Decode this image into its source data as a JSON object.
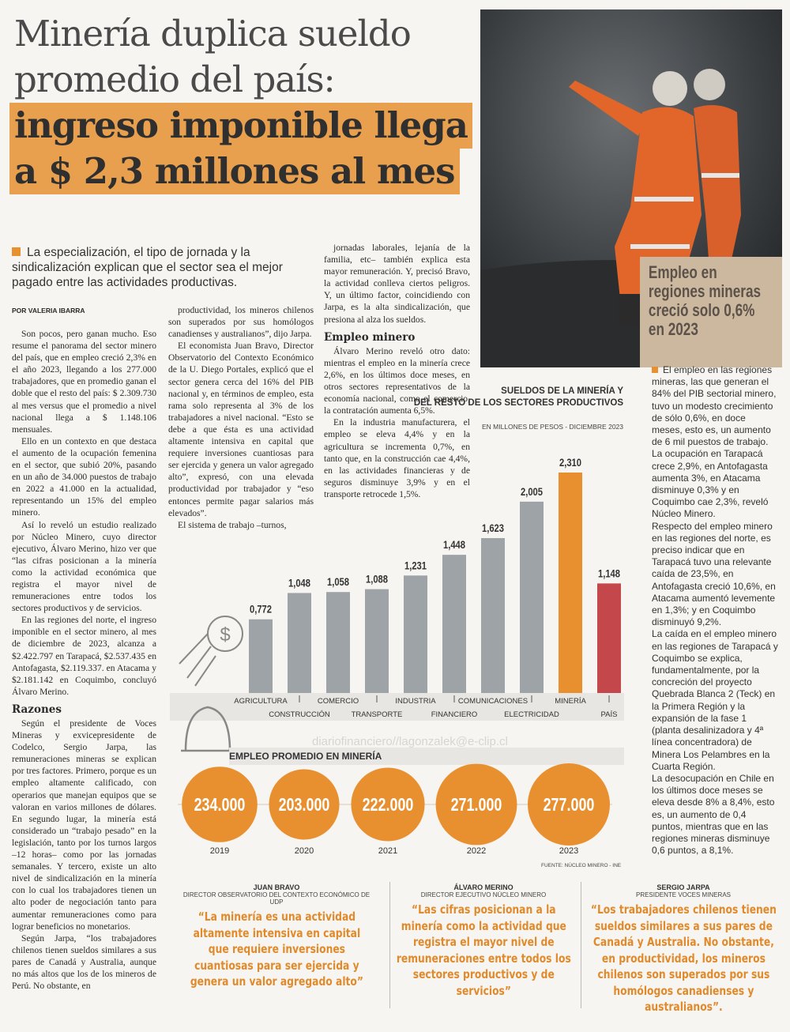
{
  "headline": {
    "lines": [
      "Minería duplica sueldo",
      "promedio del país:",
      "ingreso imponible llega",
      "a $ 2,3 millones al mes"
    ]
  },
  "lead": "La especialización, el tipo de jornada y la sindicalización explican que el sector sea el mejor pagado entre las actividades productivas.",
  "byline": "POR VALERIA IBARRA",
  "body": {
    "col1a": [
      "Son pocos, pero ganan mucho. Eso resume el panorama del sector minero del país, que en empleo creció 2,3% en el año 2023, llegando a los 277.000 trabajadores, que en promedio ganan el doble que el resto del país: $ 2.309.730 al mes versus que el promedio a nivel nacional llega a $ 1.148.106 mensuales.",
      "Ello en un contexto en que destaca el aumento de la ocupación femenina en el sector, que subió 20%, pasando en un año de 34.000 puestos de trabajo en 2022 a 41.000 en la actualidad, representando un 15% del empleo minero.",
      "Así lo reveló un estudio realizado por Núcleo Minero, cuyo director ejecutivo, Álvaro Merino, hizo ver que “las cifras posicionan a la minería como la actividad económica que registra el mayor nivel de remuneraciones entre todos los sectores productivos y de servicios.",
      "En las regiones del norte, el ingreso imponible en el sector minero, al mes de diciembre de 2023, alcanza a $2.422.797 en Tarapacá, $2.537.435 en Antofagasta, $2.119.337. en Atacama y $2.181.142 en Coquimbo, concluyó Álvaro Merino."
    ],
    "razones_title": "Razones",
    "col1b": [
      "Según el presidente de Voces Mineras y exvicepresidente de Codelco, Sergio Jarpa, las remuneraciones mineras se explican por tres factores. Primero, porque es un empleo altamente calificado, con operarios que manejan equipos que se valoran en varios millones de dólares. En segundo lugar, la minería está considerado un “trabajo pesado” en la legislación, tanto por los turnos largos –12 horas– como por las jornadas semanales. Y tercero, existe un alto nivel de sindicalización en la minería con lo cual los trabajadores tienen un alto poder de negociación tanto para aumentar remuneraciones como para lograr beneficios no monetarios.",
      "Según Jarpa, “los trabajadores chilenos tienen sueldos similares a sus pares de Canadá y Australia, aunque no más altos que los de los mineros de Perú. No obstante, en"
    ],
    "col2": [
      "productividad, los mineros chilenos son superados por sus homólogos canadienses y australianos”, dijo Jarpa.",
      "El economista Juan Bravo, Director Observatorio del Contexto Económico de la U. Diego Portales, explicó que el sector genera cerca del 16% del PIB nacional y, en términos de empleo, esta rama solo representa al 3% de los trabajadores a nivel nacional. “Esto se debe a que ésta es una actividad altamente intensiva en capital que requiere inversiones cuantiosas para ser ejercida y genera un valor agregado alto”, expresó, con una elevada productividad por trabajador y “eso entonces permite pagar salarios más elevados”.",
      "El sistema de trabajo –turnos,"
    ],
    "col3a": [
      "jornadas laborales, lejanía de la familia, etc– también explica esta mayor remuneración. Y, precisó Bravo, la actividad conlleva ciertos peligros. Y, un último factor, coincidiendo con Jarpa, es la alta sindicalización, que presiona al alza los sueldos."
    ],
    "empleo_title": "Empleo minero",
    "col3b": [
      "Álvaro Merino reveló otro dato: mientras el empleo en la minería crece 2,6%, en los últimos doce meses, en otros sectores representativos de la economía nacional, como el comercio, la contratación aumenta 6,5%.",
      "En la industria manufacturera, el empleo se eleva 4,4% y en la agricultura se incrementa 0,7%, en tanto que, en la construcción cae 4,4%, en las actividades financieras y de seguros disminuye 3,9% y en el transporte retrocede 1,5%."
    ]
  },
  "sidebar": {
    "title": "Empleo en regiones mineras creció solo 0,6% en 2023",
    "paragraphs": [
      "El empleo en las regiones mineras, las que generan el 84% del PIB sectorial minero, tuvo un modesto crecimiento de sólo 0,6%, en doce meses, esto es, un aumento de 6 mil puestos de trabajo. La ocupación en Tarapacá crece 2,9%, en Antofagasta aumenta 3%, en Atacama disminuye 0,3% y en Coquimbo cae 2,3%, reveló Núcleo Minero.",
      "Respecto del empleo minero en las regiones del norte, es preciso indicar que en Tarapacá tuvo una relevante caída de 23,5%, en Antofagasta creció 10,6%, en Atacama aumentó levemente en 1,3%; y en Coquimbo disminuyó 9,2%.",
      "La caída en el empleo minero en las regiones de Tarapacá y Coquimbo se explica, fundamentalmente, por la concreción del proyecto Quebrada Blanca 2 (Teck) en la Primera Región y la expansión de la fase 1 (planta desalinizadora y 4ª línea concentradora) de Minera Los Pelambres en la Cuarta Región.",
      "La desocupación en Chile en los últimos doce meses se eleva desde 8% a 8,4%, esto es, un aumento de 0,4 puntos, mientras que en las regiones mineras disminuye 0,6 puntos, a 8,1%."
    ]
  },
  "chart_data": {
    "type": "bar",
    "title": "SUELDOS DE LA MINERÍA Y DEL RESTO DE LOS SECTORES PRODUCTIVOS",
    "subtitle": "EN MILLONES DE PESOS - DICIEMBRE 2023",
    "categories": [
      "AGRICULTURA",
      "CONSTRUCCIÓN",
      "COMERCIO",
      "TRANSPORTE",
      "INDUSTRIA",
      "FINANCIERO",
      "COMUNICACIONES",
      "ELECTRICIDAD",
      "MINERÍA",
      "PAÍS"
    ],
    "values": [
      0.772,
      1.048,
      1.058,
      1.088,
      1.231,
      1.448,
      1.623,
      2.005,
      2.31,
      1.148
    ],
    "value_labels": [
      "0,772",
      "1,048",
      "1,058",
      "1,088",
      "1,231",
      "1,448",
      "1,623",
      "2,005",
      "2,310",
      "1,148"
    ],
    "colors": [
      "#9ea3a8",
      "#9ea3a8",
      "#9ea3a8",
      "#9ea3a8",
      "#9ea3a8",
      "#9ea3a8",
      "#9ea3a8",
      "#9ea3a8",
      "#e8902f",
      "#c4474b"
    ]
  },
  "employment": {
    "type": "bubble",
    "title": "EMPLEO PROMEDIO EN MINERÍA",
    "categories": [
      "2019",
      "2020",
      "2021",
      "2022",
      "2023"
    ],
    "values": [
      234000,
      203000,
      222000,
      271000,
      277000
    ],
    "value_labels": [
      "234.000",
      "203.000",
      "222.000",
      "271.000",
      "277.000"
    ],
    "color": "#e8902f",
    "source": "FUENTE: NÚCLEO MINERO - INE"
  },
  "watermark": "diariofinanciero//lagonzalek@e-clip.cl",
  "quotes": [
    {
      "name": "JUAN BRAVO",
      "role": "DIRECTOR OBSERVATORIO DEL CONTEXTO ECONÓMICO DE UDP",
      "text": "“La minería es una actividad altamente intensiva en capital que requiere inversiones cuantiosas para ser ejercida y genera un valor agregado alto”"
    },
    {
      "name": "ÁLVARO MERINO",
      "role": "DIRECTOR EJECUTIVO NÚCLEO MINERO",
      "text": "“Las cifras posicionan a la minería como la actividad que registra el mayor nivel de remuneraciones entre todos los sectores productivos y de servicios”"
    },
    {
      "name": "SERGIO JARPA",
      "role": "PRESIDENTE VOCES MINERAS",
      "text": "“Los trabajadores chilenos tienen sueldos similares a sus pares de Canadá y Australia. No obstante, en productividad, los mineros chilenos son superados por sus homólogos canadienses y australianos”."
    }
  ]
}
